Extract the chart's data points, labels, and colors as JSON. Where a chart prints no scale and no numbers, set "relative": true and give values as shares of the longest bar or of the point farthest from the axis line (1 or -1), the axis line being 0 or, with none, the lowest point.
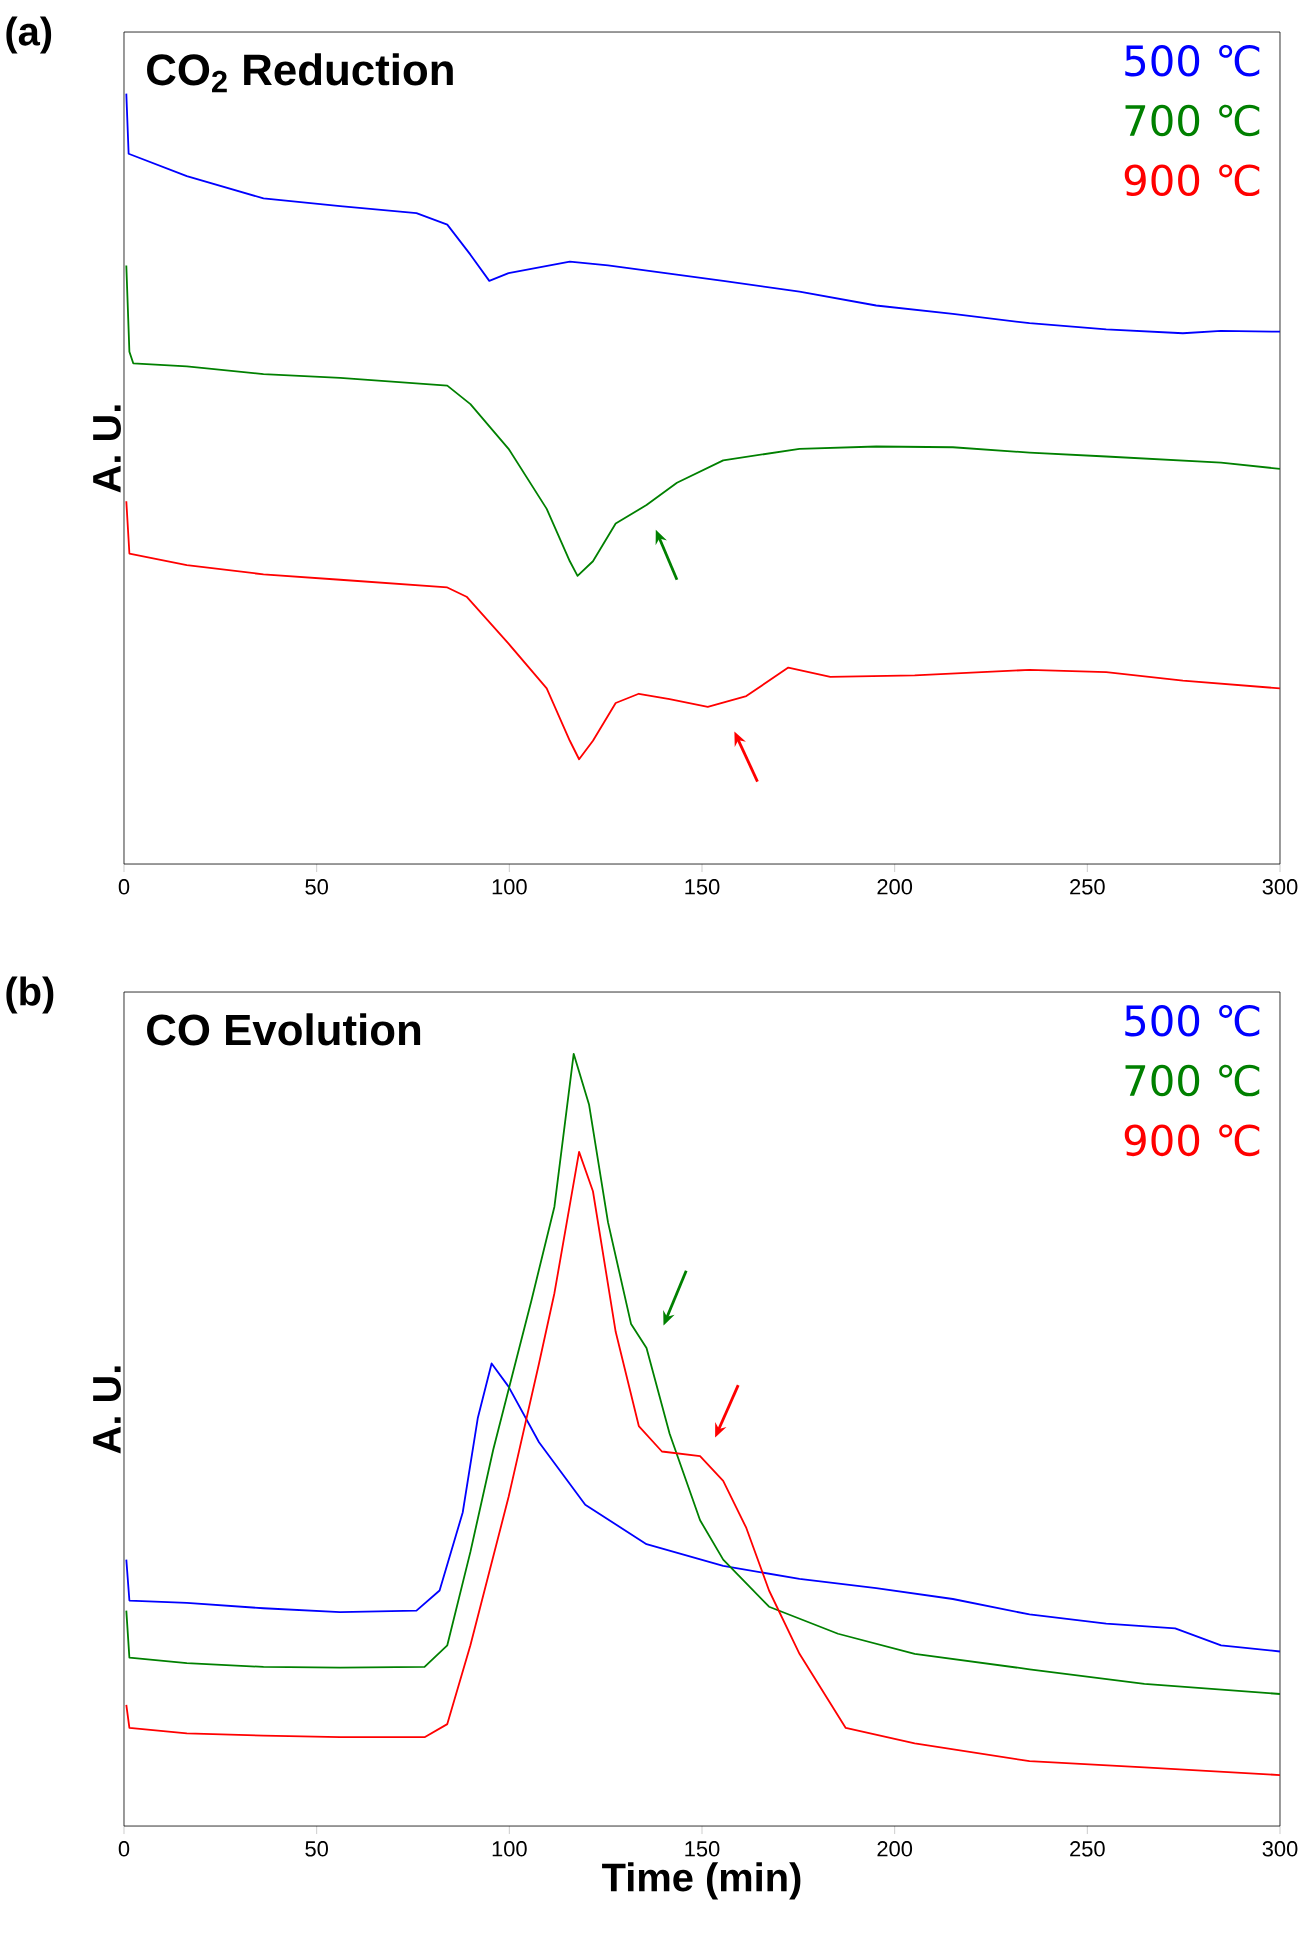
{
  "chart_data": [
    {
      "type": "line",
      "title": "CO$_{2}$ Reduction",
      "ylabel": "A. U.",
      "annotations": [
        "(a)"
      ],
      "relative": true,
      "xlim": [
        0,
        300
      ],
      "xticks": [
        0,
        50,
        100,
        150,
        200,
        250,
        300
      ],
      "legend": "top right",
      "series": [
        {
          "name": "500 ℃",
          "color": "#0000ff",
          "x": [
            0.6,
            1.2,
            16.3,
            36.2,
            56.1,
            75.9,
            83.9,
            89.9,
            94.8,
            99.8,
            115.7,
            125.6,
            155.5,
            175.3,
            195.2,
            215.1,
            235.0,
            254.9,
            274.8,
            284.7,
            300
          ],
          "values": [
            1.0,
            0.922,
            0.893,
            0.864,
            0.854,
            0.845,
            0.83,
            0.791,
            0.757,
            0.767,
            0.782,
            0.777,
            0.757,
            0.743,
            0.725,
            0.714,
            0.702,
            0.694,
            0.689,
            0.692,
            0.691
          ]
        },
        {
          "name": "700 ℃",
          "color": "#008000",
          "x": [
            0.6,
            1.4,
            2.4,
            16.3,
            36.2,
            56.1,
            83.9,
            89.9,
            99.8,
            109.7,
            115.7,
            117.7,
            121.7,
            127.6,
            135.6,
            143.5,
            155.5,
            175.3,
            195.2,
            215.1,
            235.0,
            254.9,
            284.7,
            300
          ],
          "values": [
            0.777,
            0.665,
            0.65,
            0.646,
            0.636,
            0.631,
            0.621,
            0.597,
            0.539,
            0.461,
            0.393,
            0.374,
            0.393,
            0.442,
            0.466,
            0.495,
            0.524,
            0.539,
            0.542,
            0.541,
            0.534,
            0.529,
            0.521,
            0.513
          ]
        },
        {
          "name": "900 ℃",
          "color": "#ff0000",
          "x": [
            0.6,
            1.4,
            16.3,
            36.2,
            56.1,
            83.9,
            88.9,
            99.8,
            109.7,
            115.7,
            118.1,
            121.7,
            127.6,
            133.6,
            141.6,
            151.5,
            161.5,
            172.4,
            183.3,
            205.2,
            235.0,
            254.9,
            274.8,
            300
          ],
          "values": [
            0.471,
            0.403,
            0.388,
            0.376,
            0.369,
            0.359,
            0.347,
            0.286,
            0.228,
            0.16,
            0.136,
            0.16,
            0.209,
            0.221,
            0.214,
            0.204,
            0.218,
            0.255,
            0.243,
            0.245,
            0.252,
            0.249,
            0.238,
            0.228
          ]
        }
      ]
    },
    {
      "type": "line",
      "title": "CO Evolution",
      "xlabel": "Time (min)",
      "ylabel": "A. U.",
      "annotations": [
        "(b)"
      ],
      "relative": true,
      "xlim": [
        0,
        300
      ],
      "xticks": [
        0,
        50,
        100,
        150,
        200,
        250,
        300
      ],
      "legend": "top right",
      "series": [
        {
          "name": "500 ℃",
          "color": "#0000ff",
          "x": [
            0.6,
            1.4,
            16.3,
            36.2,
            56.1,
            75.9,
            81.9,
            87.9,
            91.8,
            95.4,
            99.8,
            107.7,
            119.7,
            135.6,
            155.5,
            175.3,
            195.2,
            215.1,
            235.0,
            254.9,
            272.8,
            284.7,
            300
          ],
          "values": [
            0.345,
            0.292,
            0.289,
            0.282,
            0.277,
            0.279,
            0.305,
            0.406,
            0.528,
            0.599,
            0.569,
            0.497,
            0.416,
            0.365,
            0.337,
            0.32,
            0.308,
            0.294,
            0.274,
            0.262,
            0.256,
            0.234,
            0.226
          ]
        },
        {
          "name": "700 ℃",
          "color": "#008000",
          "x": [
            0.6,
            1.4,
            16.3,
            36.2,
            56.1,
            78.0,
            83.9,
            89.9,
            95.8,
            105.7,
            111.7,
            116.7,
            120.7,
            125.6,
            131.6,
            135.6,
            141.6,
            149.5,
            155.5,
            167.4,
            185.3,
            205.2,
            235.0,
            264.8,
            300
          ],
          "values": [
            0.279,
            0.218,
            0.211,
            0.206,
            0.205,
            0.206,
            0.234,
            0.355,
            0.487,
            0.68,
            0.802,
            1.0,
            0.934,
            0.782,
            0.65,
            0.619,
            0.508,
            0.396,
            0.345,
            0.284,
            0.249,
            0.223,
            0.203,
            0.184,
            0.171
          ]
        },
        {
          "name": "900 ℃",
          "color": "#ff0000",
          "x": [
            0.6,
            1.4,
            16.3,
            36.2,
            56.1,
            78.0,
            83.9,
            89.9,
            99.8,
            107.7,
            111.7,
            118.1,
            121.7,
            127.6,
            133.6,
            139.6,
            149.5,
            155.5,
            161.5,
            167.4,
            175.3,
            187.3,
            205.2,
            235.0,
            264.8,
            300
          ],
          "values": [
            0.157,
            0.127,
            0.12,
            0.117,
            0.115,
            0.115,
            0.132,
            0.234,
            0.426,
            0.599,
            0.69,
            0.873,
            0.822,
            0.64,
            0.518,
            0.485,
            0.479,
            0.447,
            0.386,
            0.305,
            0.223,
            0.127,
            0.107,
            0.084,
            0.076,
            0.066
          ]
        }
      ]
    }
  ]
}
